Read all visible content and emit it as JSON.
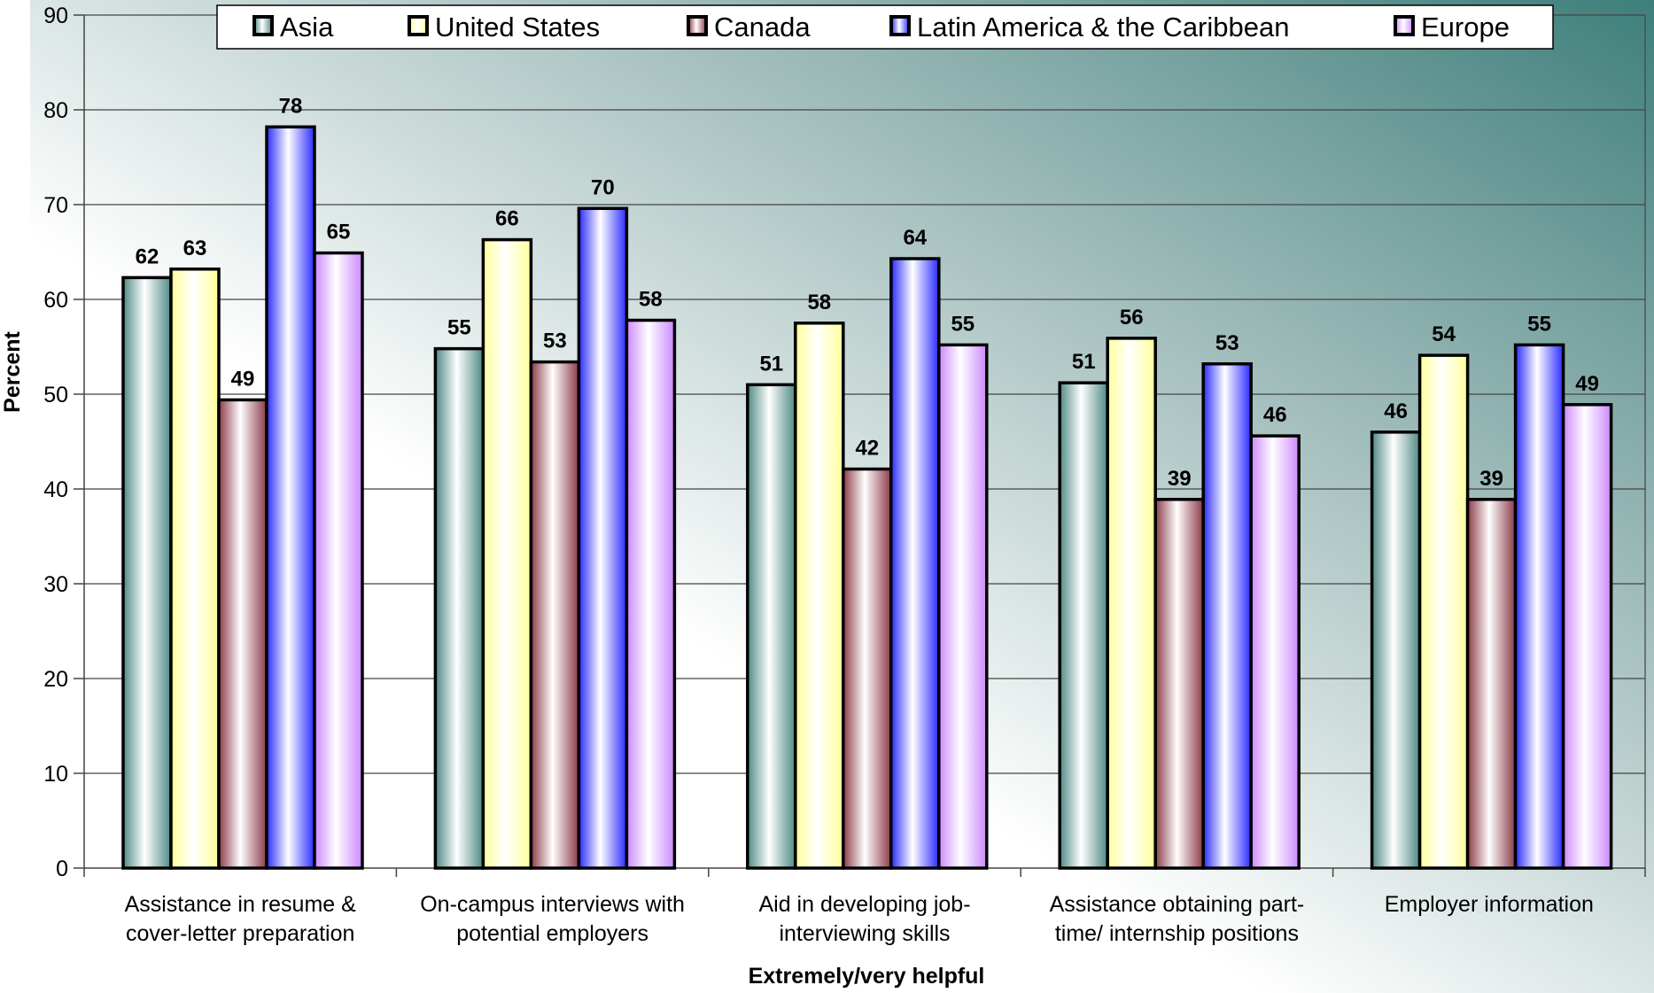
{
  "chart_data": {
    "type": "bar",
    "title": "",
    "xlabel": "Extremely/very helpful",
    "ylabel": "Percent",
    "ylim": [
      0,
      90
    ],
    "yticks": [
      0,
      10,
      20,
      30,
      40,
      50,
      60,
      70,
      80,
      90
    ],
    "grid": true,
    "legend_position": "top",
    "categories": [
      [
        "Assistance in resume &",
        "cover-letter preparation"
      ],
      [
        "On-campus interviews with",
        "potential employers"
      ],
      [
        "Aid in developing job-",
        "interviewing skills"
      ],
      [
        "Assistance obtaining part-",
        "time/ internship positions"
      ],
      [
        "Employer information"
      ]
    ],
    "series": [
      {
        "name": "Asia",
        "values": [
          62,
          55,
          51,
          51,
          46
        ],
        "plot_values": [
          62.3,
          54.8,
          51.0,
          51.2,
          46.0
        ],
        "color_light": "#ffffff",
        "color_dark": "#4f8a84"
      },
      {
        "name": "United States",
        "values": [
          63,
          66,
          58,
          56,
          54
        ],
        "plot_values": [
          63.2,
          66.3,
          57.5,
          55.9,
          54.1
        ],
        "color_light": "#ffffff",
        "color_dark": "#ffff99"
      },
      {
        "name": "Canada",
        "values": [
          49,
          53,
          42,
          39,
          39
        ],
        "plot_values": [
          49.4,
          53.4,
          42.1,
          38.9,
          38.9
        ],
        "color_light": "#ffffff",
        "color_dark": "#8b3a48"
      },
      {
        "name": "Latin America & the Caribbean",
        "values": [
          78,
          70,
          64,
          53,
          55
        ],
        "plot_values": [
          78.2,
          69.6,
          64.3,
          53.2,
          55.2
        ],
        "color_light": "#ffffff",
        "color_dark": "#2a2aff"
      },
      {
        "name": "Europe",
        "values": [
          65,
          58,
          55,
          46,
          49
        ],
        "plot_values": [
          64.9,
          57.8,
          55.2,
          45.6,
          48.9
        ],
        "color_light": "#ffffff",
        "color_dark": "#cc88ff"
      }
    ]
  }
}
